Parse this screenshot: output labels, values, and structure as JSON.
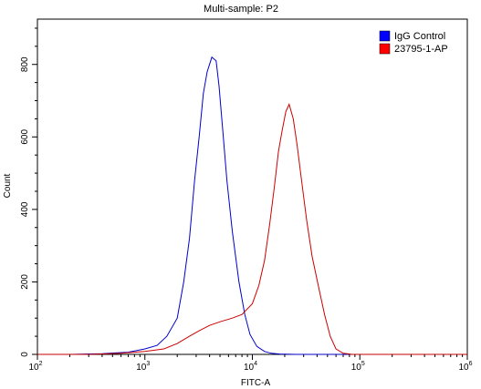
{
  "chart_data": {
    "type": "line",
    "title": "Multi-sample: P2",
    "xlabel": "FITC-A",
    "ylabel": "Count",
    "x_scale": "log",
    "xlim": [
      100,
      1000000
    ],
    "ylim": [
      0,
      925
    ],
    "x_ticks": [
      {
        "base": "10",
        "exp": "2"
      },
      {
        "base": "10",
        "exp": "3"
      },
      {
        "base": "10",
        "exp": "4"
      },
      {
        "base": "10",
        "exp": "5"
      },
      {
        "base": "10",
        "exp": "6"
      }
    ],
    "y_ticks": [
      "0",
      "200",
      "400",
      "600",
      "800"
    ],
    "legend_position": "top-right",
    "series": [
      {
        "name": "IgG Control",
        "color": "#0000cc",
        "swatch_color": "#0000ff",
        "points": [
          [
            100,
            0
          ],
          [
            200,
            0
          ],
          [
            400,
            2
          ],
          [
            700,
            6
          ],
          [
            1000,
            15
          ],
          [
            1300,
            25
          ],
          [
            1600,
            50
          ],
          [
            2000,
            100
          ],
          [
            2300,
            200
          ],
          [
            2600,
            320
          ],
          [
            2900,
            480
          ],
          [
            3200,
            600
          ],
          [
            3500,
            720
          ],
          [
            3800,
            780
          ],
          [
            4200,
            820
          ],
          [
            4600,
            810
          ],
          [
            4900,
            740
          ],
          [
            5300,
            620
          ],
          [
            5800,
            480
          ],
          [
            6500,
            340
          ],
          [
            7500,
            200
          ],
          [
            8500,
            110
          ],
          [
            9500,
            55
          ],
          [
            11000,
            22
          ],
          [
            13000,
            8
          ],
          [
            15000,
            3
          ],
          [
            18000,
            1
          ],
          [
            25000,
            0
          ],
          [
            1000000,
            0
          ]
        ]
      },
      {
        "name": "23795-1-AP",
        "color": "#cc0000",
        "swatch_color": "#ff0000",
        "points": [
          [
            100,
            0
          ],
          [
            300,
            0
          ],
          [
            600,
            3
          ],
          [
            1000,
            8
          ],
          [
            1500,
            15
          ],
          [
            2000,
            30
          ],
          [
            2600,
            50
          ],
          [
            3200,
            65
          ],
          [
            4000,
            80
          ],
          [
            5000,
            90
          ],
          [
            6500,
            100
          ],
          [
            8000,
            110
          ],
          [
            10000,
            140
          ],
          [
            11500,
            190
          ],
          [
            13000,
            260
          ],
          [
            14500,
            360
          ],
          [
            16000,
            460
          ],
          [
            17500,
            560
          ],
          [
            19000,
            620
          ],
          [
            20500,
            670
          ],
          [
            22000,
            690
          ],
          [
            24000,
            650
          ],
          [
            26000,
            580
          ],
          [
            29000,
            470
          ],
          [
            32000,
            370
          ],
          [
            36000,
            270
          ],
          [
            41000,
            190
          ],
          [
            47000,
            110
          ],
          [
            53000,
            50
          ],
          [
            60000,
            15
          ],
          [
            70000,
            3
          ],
          [
            85000,
            0
          ],
          [
            1000000,
            0
          ]
        ]
      }
    ]
  }
}
